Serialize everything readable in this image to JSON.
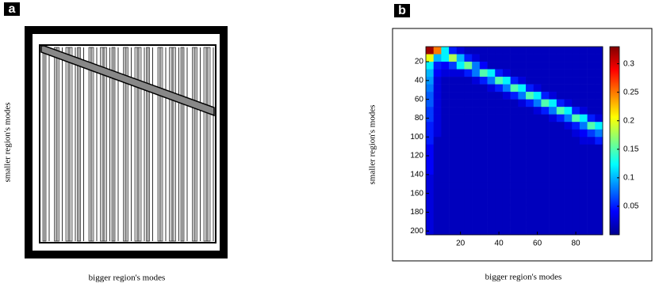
{
  "panel_a": {
    "label": "a",
    "xlabel": "bigger region's modes",
    "ylabel": "smaller region's modes"
  },
  "chart_data": {
    "type": "heatmap",
    "label": "b",
    "xlabel": "bigger region's modes",
    "ylabel": "smaller region's modes",
    "xlim": [
      2,
      94
    ],
    "ylim": [
      4,
      204
    ],
    "xticks": [
      20,
      40,
      60,
      80
    ],
    "yticks": [
      20,
      40,
      60,
      80,
      100,
      120,
      140,
      160,
      180,
      200
    ],
    "colormap": "jet",
    "clim": [
      0,
      0.33
    ],
    "cticks": [
      0.05,
      0.1,
      0.15,
      0.2,
      0.25,
      0.3
    ],
    "z": [
      [
        0.32,
        0.25,
        0.12,
        0.05,
        0.03,
        0.02,
        0.02,
        0.02,
        0.02,
        0.02,
        0.02,
        0.02,
        0.02,
        0.02,
        0.02,
        0.02,
        0.02,
        0.02,
        0.02,
        0.02,
        0.02,
        0.02,
        0.02
      ],
      [
        0.2,
        0.1,
        0.12,
        0.18,
        0.1,
        0.05,
        0.03,
        0.02,
        0.02,
        0.02,
        0.02,
        0.02,
        0.02,
        0.02,
        0.02,
        0.02,
        0.02,
        0.02,
        0.02,
        0.02,
        0.02,
        0.02,
        0.02
      ],
      [
        0.12,
        0.05,
        0.04,
        0.06,
        0.12,
        0.16,
        0.08,
        0.04,
        0.02,
        0.02,
        0.02,
        0.02,
        0.02,
        0.02,
        0.02,
        0.02,
        0.02,
        0.02,
        0.02,
        0.02,
        0.02,
        0.02,
        0.02
      ],
      [
        0.1,
        0.04,
        0.03,
        0.03,
        0.03,
        0.05,
        0.08,
        0.15,
        0.12,
        0.05,
        0.03,
        0.02,
        0.02,
        0.02,
        0.02,
        0.02,
        0.02,
        0.02,
        0.02,
        0.02,
        0.02,
        0.02,
        0.02
      ],
      [
        0.09,
        0.03,
        0.02,
        0.02,
        0.02,
        0.02,
        0.03,
        0.05,
        0.08,
        0.15,
        0.12,
        0.05,
        0.03,
        0.02,
        0.02,
        0.02,
        0.02,
        0.02,
        0.02,
        0.02,
        0.02,
        0.02,
        0.02
      ],
      [
        0.08,
        0.03,
        0.02,
        0.02,
        0.02,
        0.02,
        0.02,
        0.02,
        0.03,
        0.05,
        0.08,
        0.15,
        0.12,
        0.05,
        0.03,
        0.02,
        0.02,
        0.02,
        0.02,
        0.02,
        0.02,
        0.02,
        0.02
      ],
      [
        0.07,
        0.03,
        0.02,
        0.02,
        0.02,
        0.02,
        0.02,
        0.02,
        0.02,
        0.02,
        0.03,
        0.05,
        0.08,
        0.15,
        0.12,
        0.05,
        0.03,
        0.02,
        0.02,
        0.02,
        0.02,
        0.02,
        0.02
      ],
      [
        0.07,
        0.03,
        0.02,
        0.02,
        0.02,
        0.02,
        0.02,
        0.02,
        0.02,
        0.02,
        0.02,
        0.02,
        0.03,
        0.05,
        0.08,
        0.15,
        0.12,
        0.05,
        0.03,
        0.02,
        0.02,
        0.02,
        0.02
      ],
      [
        0.06,
        0.03,
        0.02,
        0.02,
        0.02,
        0.02,
        0.02,
        0.02,
        0.02,
        0.02,
        0.02,
        0.02,
        0.02,
        0.02,
        0.03,
        0.05,
        0.08,
        0.15,
        0.12,
        0.05,
        0.03,
        0.02,
        0.02
      ],
      [
        0.06,
        0.03,
        0.02,
        0.02,
        0.02,
        0.02,
        0.02,
        0.02,
        0.02,
        0.02,
        0.02,
        0.02,
        0.02,
        0.02,
        0.02,
        0.02,
        0.03,
        0.05,
        0.08,
        0.15,
        0.12,
        0.05,
        0.03
      ],
      [
        0.05,
        0.03,
        0.02,
        0.02,
        0.02,
        0.02,
        0.02,
        0.02,
        0.02,
        0.02,
        0.02,
        0.02,
        0.02,
        0.02,
        0.02,
        0.02,
        0.02,
        0.02,
        0.03,
        0.05,
        0.08,
        0.15,
        0.12
      ],
      [
        0.05,
        0.03,
        0.02,
        0.02,
        0.02,
        0.02,
        0.02,
        0.02,
        0.02,
        0.02,
        0.02,
        0.02,
        0.02,
        0.02,
        0.02,
        0.02,
        0.02,
        0.02,
        0.02,
        0.03,
        0.04,
        0.06,
        0.08
      ],
      [
        0.05,
        0.02,
        0.02,
        0.02,
        0.02,
        0.02,
        0.02,
        0.02,
        0.02,
        0.02,
        0.02,
        0.02,
        0.02,
        0.02,
        0.02,
        0.02,
        0.02,
        0.02,
        0.02,
        0.02,
        0.03,
        0.03,
        0.05
      ],
      [
        0.04,
        0.02,
        0.02,
        0.02,
        0.02,
        0.02,
        0.02,
        0.02,
        0.02,
        0.02,
        0.02,
        0.02,
        0.02,
        0.02,
        0.02,
        0.02,
        0.02,
        0.02,
        0.02,
        0.02,
        0.02,
        0.02,
        0.02
      ],
      [
        0.04,
        0.02,
        0.02,
        0.02,
        0.02,
        0.02,
        0.02,
        0.02,
        0.02,
        0.02,
        0.02,
        0.02,
        0.02,
        0.02,
        0.02,
        0.02,
        0.02,
        0.02,
        0.02,
        0.02,
        0.02,
        0.02,
        0.02
      ],
      [
        0.04,
        0.02,
        0.02,
        0.02,
        0.02,
        0.02,
        0.02,
        0.02,
        0.02,
        0.02,
        0.02,
        0.02,
        0.02,
        0.02,
        0.02,
        0.02,
        0.02,
        0.02,
        0.02,
        0.02,
        0.02,
        0.02,
        0.02
      ],
      [
        0.04,
        0.02,
        0.02,
        0.02,
        0.02,
        0.02,
        0.02,
        0.02,
        0.02,
        0.02,
        0.02,
        0.02,
        0.02,
        0.02,
        0.02,
        0.02,
        0.02,
        0.02,
        0.02,
        0.02,
        0.02,
        0.02,
        0.02
      ],
      [
        0.03,
        0.02,
        0.02,
        0.02,
        0.02,
        0.02,
        0.02,
        0.02,
        0.02,
        0.02,
        0.02,
        0.02,
        0.02,
        0.02,
        0.02,
        0.02,
        0.02,
        0.02,
        0.02,
        0.02,
        0.02,
        0.02,
        0.02
      ],
      [
        0.03,
        0.02,
        0.02,
        0.02,
        0.02,
        0.02,
        0.02,
        0.02,
        0.02,
        0.02,
        0.02,
        0.02,
        0.02,
        0.02,
        0.02,
        0.02,
        0.02,
        0.02,
        0.02,
        0.02,
        0.02,
        0.02,
        0.02
      ],
      [
        0.03,
        0.02,
        0.02,
        0.02,
        0.02,
        0.02,
        0.02,
        0.02,
        0.02,
        0.02,
        0.02,
        0.02,
        0.02,
        0.02,
        0.02,
        0.02,
        0.02,
        0.02,
        0.02,
        0.02,
        0.02,
        0.02,
        0.02
      ],
      [
        0.03,
        0.02,
        0.02,
        0.02,
        0.02,
        0.02,
        0.02,
        0.02,
        0.02,
        0.02,
        0.02,
        0.02,
        0.02,
        0.02,
        0.02,
        0.02,
        0.02,
        0.02,
        0.02,
        0.02,
        0.02,
        0.02,
        0.02
      ],
      [
        0.03,
        0.02,
        0.02,
        0.02,
        0.02,
        0.02,
        0.02,
        0.02,
        0.02,
        0.02,
        0.02,
        0.02,
        0.02,
        0.02,
        0.02,
        0.02,
        0.02,
        0.02,
        0.02,
        0.02,
        0.02,
        0.02,
        0.02
      ],
      [
        0.03,
        0.02,
        0.02,
        0.02,
        0.02,
        0.02,
        0.02,
        0.02,
        0.02,
        0.02,
        0.02,
        0.02,
        0.02,
        0.02,
        0.02,
        0.02,
        0.02,
        0.02,
        0.02,
        0.02,
        0.02,
        0.02,
        0.02
      ],
      [
        0.03,
        0.02,
        0.02,
        0.02,
        0.02,
        0.02,
        0.02,
        0.02,
        0.02,
        0.02,
        0.02,
        0.02,
        0.02,
        0.02,
        0.02,
        0.02,
        0.02,
        0.02,
        0.02,
        0.02,
        0.02,
        0.02,
        0.02
      ],
      [
        0.03,
        0.02,
        0.02,
        0.02,
        0.02,
        0.02,
        0.02,
        0.02,
        0.02,
        0.02,
        0.02,
        0.02,
        0.02,
        0.02,
        0.02,
        0.02,
        0.02,
        0.02,
        0.02,
        0.02,
        0.02,
        0.02,
        0.02
      ]
    ]
  }
}
